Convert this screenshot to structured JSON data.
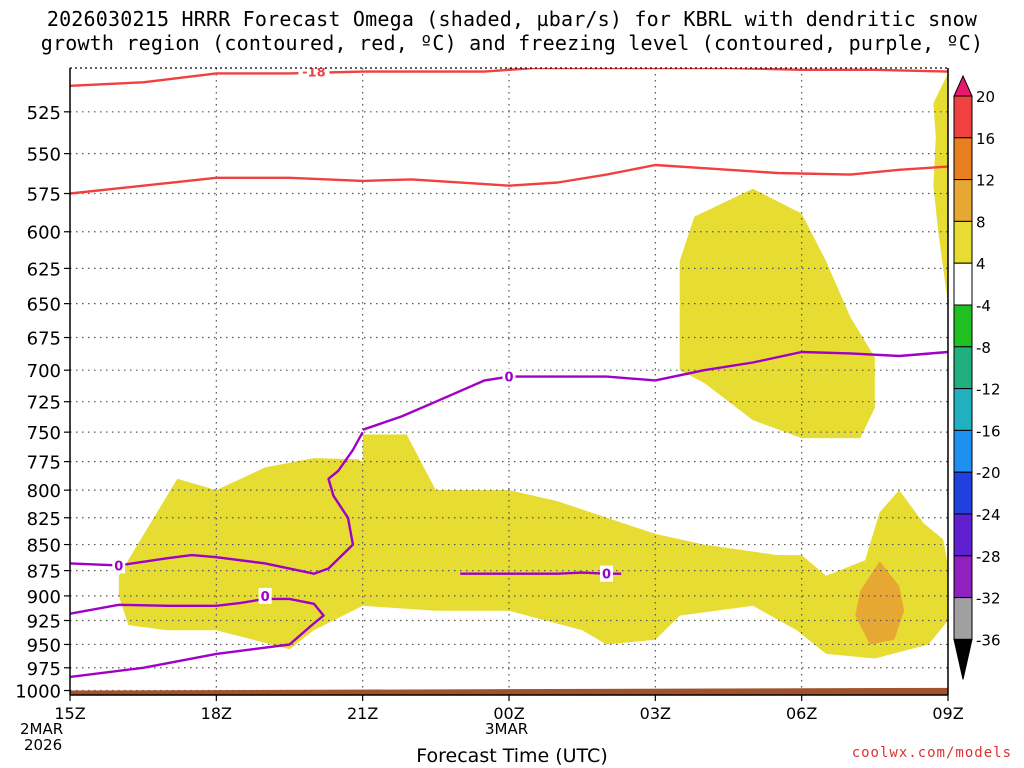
{
  "title_line1": "2026030215 HRRR Forecast Omega (shaded, µbar/s) for KBRL with dendritic snow",
  "title_line2": "growth region (contoured, red, ºC) and freezing level (contoured, purple, ºC)",
  "x_axis_title": "Forecast Time (UTC)",
  "credit": "coolwx.com/models",
  "date_labels": {
    "start_day": "2MAR",
    "start_year": "2026",
    "mid_day": "3MAR"
  },
  "colors": {
    "omega_4_8": "#e6dc32",
    "omega_12_16": "#e6a832",
    "dgz_contour": "#f04040",
    "freezing_contour": "#a000c8",
    "terrain": "#a0522d",
    "grid": "#555555"
  },
  "chart_data": {
    "type": "time-height cross section",
    "title": "2026030215 HRRR Forecast Omega (shaded, µbar/s) for KBRL with dendritic snow growth region (contoured, red, ºC) and freezing level (contoured, purple, ºC)",
    "xlabel": "Forecast Time (UTC)",
    "ylabel": "",
    "x_ticks": [
      "15Z",
      "18Z",
      "21Z",
      "00Z",
      "03Z",
      "06Z",
      "09Z"
    ],
    "x_hours": [
      0,
      3,
      6,
      9,
      12,
      15,
      18
    ],
    "xlim": [
      0,
      18
    ],
    "y_ticks": [
      525,
      550,
      575,
      600,
      625,
      650,
      675,
      700,
      725,
      750,
      775,
      800,
      825,
      850,
      875,
      900,
      925,
      950,
      975,
      1000
    ],
    "ylim": [
      500,
      1005
    ],
    "y_scale": "log-pressure",
    "grid": true,
    "colorbar": {
      "ticks": [
        20,
        16,
        12,
        8,
        4,
        -4,
        -8,
        -12,
        -16,
        -20,
        -24,
        -28,
        -32,
        -36
      ],
      "colors": [
        "#e8186e",
        "#f04040",
        "#e88020",
        "#e6a832",
        "#e6dc32",
        "#ffffff",
        "#20c020",
        "#20b080",
        "#20b0c0",
        "#2090f0",
        "#2040e0",
        "#6020d0",
        "#9020c0",
        "#a0a0a0",
        "#000000"
      ],
      "position": "right"
    },
    "omega_regions": [
      {
        "level": "4",
        "points": [
          [
            1.0,
            880
          ],
          [
            2.2,
            790
          ],
          [
            3.0,
            800
          ],
          [
            4.0,
            780
          ],
          [
            5.0,
            772
          ],
          [
            5.9,
            773
          ],
          [
            6.0,
            775
          ],
          [
            6.0,
            752
          ],
          [
            6.9,
            752
          ],
          [
            7.5,
            800
          ],
          [
            9.0,
            800
          ],
          [
            10.0,
            810
          ],
          [
            12.0,
            840
          ],
          [
            13.0,
            850
          ],
          [
            14.5,
            860
          ],
          [
            15.0,
            860
          ],
          [
            15.5,
            880
          ],
          [
            16.3,
            865
          ],
          [
            16.6,
            820
          ],
          [
            17.0,
            800
          ],
          [
            17.5,
            830
          ],
          [
            17.9,
            845
          ],
          [
            18.0,
            870
          ],
          [
            18.0,
            925
          ],
          [
            17.6,
            950
          ],
          [
            16.5,
            965
          ],
          [
            15.5,
            960
          ],
          [
            14.9,
            935
          ],
          [
            14.0,
            910
          ],
          [
            12.5,
            920
          ],
          [
            12.0,
            945
          ],
          [
            11.0,
            950
          ],
          [
            10.5,
            935
          ],
          [
            9.0,
            915
          ],
          [
            7.5,
            915
          ],
          [
            6.0,
            910
          ],
          [
            5.0,
            935
          ],
          [
            4.5,
            955
          ],
          [
            3.0,
            935
          ],
          [
            2.0,
            935
          ],
          [
            1.2,
            930
          ],
          [
            1.0,
            900
          ]
        ]
      },
      {
        "level": "4",
        "points": [
          [
            12.5,
            620
          ],
          [
            12.8,
            590
          ],
          [
            14.0,
            572
          ],
          [
            15.0,
            588
          ],
          [
            15.5,
            620
          ],
          [
            16.0,
            660
          ],
          [
            16.5,
            690
          ],
          [
            16.5,
            730
          ],
          [
            16.2,
            755
          ],
          [
            15.0,
            755
          ],
          [
            14.0,
            740
          ],
          [
            13.0,
            710
          ],
          [
            12.5,
            700
          ],
          [
            12.5,
            640
          ]
        ]
      },
      {
        "level": "4",
        "points": [
          [
            18.0,
            503
          ],
          [
            17.7,
            520
          ],
          [
            17.75,
            540
          ],
          [
            17.7,
            570
          ],
          [
            17.8,
            600
          ],
          [
            18.0,
            650
          ]
        ]
      },
      {
        "level": "12",
        "points": [
          [
            16.6,
            866
          ],
          [
            17.0,
            890
          ],
          [
            17.1,
            915
          ],
          [
            16.9,
            945
          ],
          [
            16.4,
            950
          ],
          [
            16.1,
            920
          ],
          [
            16.2,
            895
          ]
        ]
      }
    ],
    "series": [
      {
        "name": "-18",
        "kind": "dgz",
        "label_at": [
          5.0,
          502
        ],
        "x": [
          0,
          1.5,
          3.0,
          4.5,
          6.0,
          7.0,
          8.5,
          9.5,
          10.5,
          12,
          13.5,
          15,
          16.5,
          18
        ],
        "y": [
          510,
          508,
          503,
          503,
          502,
          502,
          502,
          500,
          500,
          500,
          500,
          501,
          501,
          502
        ]
      },
      {
        "name": "-18",
        "kind": "dgz",
        "x": [
          0,
          1.5,
          3.0,
          4.5,
          6.0,
          7.0,
          8.5,
          9.0,
          10.0,
          11.0,
          12.0,
          13.0,
          14.5,
          16.0,
          17.0,
          18.0
        ],
        "y": [
          575,
          570,
          565,
          565,
          567,
          566,
          569,
          570,
          568,
          563,
          557,
          559,
          562,
          563,
          560,
          558
        ]
      },
      {
        "name": "0",
        "kind": "freezing",
        "label_at": [
          9.0,
          705
        ],
        "x": [
          6.0,
          6.8,
          7.5,
          8.5,
          9.0,
          10.0,
          11.0,
          12.0,
          12.5,
          13.0,
          14.0,
          15.0,
          16.0,
          17.0,
          18.0
        ],
        "y": [
          748,
          737,
          725,
          708,
          705,
          705,
          705,
          708,
          704,
          700,
          694,
          686,
          687,
          689,
          686
        ]
      },
      {
        "name": "0",
        "kind": "freezing",
        "label_at": [
          1.0,
          870
        ],
        "x": [
          0,
          1.0,
          2.0,
          2.5,
          3.0,
          4.0,
          5.0,
          5.3,
          5.8,
          5.7,
          5.4,
          5.3,
          5.5,
          5.8,
          6.0
        ],
        "y": [
          868,
          870,
          863,
          860,
          862,
          868,
          878,
          873,
          850,
          825,
          805,
          790,
          783,
          765,
          750
        ]
      },
      {
        "name": "0",
        "kind": "freezing",
        "label_at": [
          4.0,
          900
        ],
        "x": [
          0,
          1.0,
          2.0,
          3.0,
          3.5,
          4.0,
          4.5,
          5.0,
          5.2,
          5.0,
          4.5,
          3.0,
          1.5,
          0
        ],
        "y": [
          918,
          909,
          910,
          910,
          907,
          903,
          903,
          908,
          920,
          928,
          950,
          960,
          975,
          985
        ]
      },
      {
        "name": "0",
        "kind": "freezing",
        "label_at": [
          11.0,
          878
        ],
        "x": [
          8.0,
          9.0,
          10.0,
          10.5,
          11.0,
          11.3
        ],
        "y": [
          878,
          878,
          878,
          877,
          878,
          878
        ]
      }
    ],
    "terrain_surface": {
      "x": [
        0,
        18
      ],
      "y": [
        1000,
        997
      ]
    }
  }
}
